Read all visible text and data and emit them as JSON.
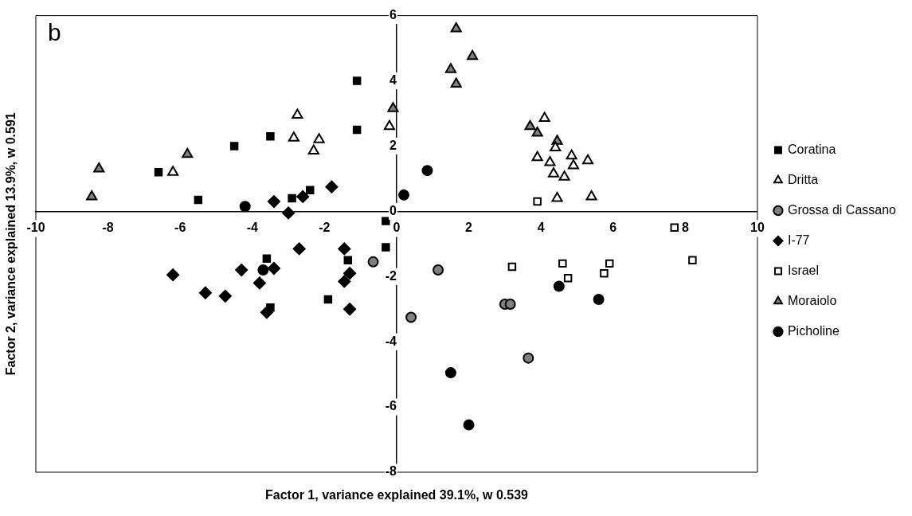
{
  "chart_data": {
    "type": "scatter",
    "xlabel": "Factor 1, variance explained 39.1%, w 0.539",
    "ylabel": "Factor 2, variance explained 13.9%, w 0.591",
    "annotations": [
      "b"
    ],
    "xlim": [
      -10,
      10
    ],
    "xticks": [
      -10,
      -8,
      -6,
      -4,
      -2,
      0,
      2,
      4,
      6,
      8,
      10
    ],
    "ylim": [
      -8,
      6
    ],
    "yticks": [
      -8,
      -6,
      -4,
      -2,
      0,
      2,
      4,
      6
    ],
    "grid": false,
    "legend": "right",
    "series": [
      {
        "name": "Coratina",
        "color": "#000000",
        "marker": "square",
        "x": [
          -1.1,
          -1.1,
          -3.5,
          -4.5,
          -6.6,
          -5.5,
          -2.9,
          -2.4,
          -0.3,
          -0.3,
          -3.6,
          -1.35,
          -1.9,
          -3.5
        ],
        "values": [
          4.0,
          2.5,
          2.3,
          2.0,
          1.2,
          0.35,
          0.4,
          0.65,
          -0.3,
          -1.1,
          -1.45,
          -1.5,
          -2.7,
          -2.95
        ]
      },
      {
        "name": "Dritta",
        "color": "#ffffff",
        "marker": "triangle",
        "x": [
          -6.2,
          -2.75,
          -2.85,
          -2.15,
          -2.3,
          -0.2,
          4.1,
          4.4,
          3.9,
          4.25,
          4.85,
          4.9,
          5.3,
          4.35,
          4.65,
          4.45,
          5.4
        ],
        "values": [
          1.2,
          2.95,
          2.25,
          2.2,
          1.85,
          2.6,
          2.85,
          1.95,
          1.65,
          1.5,
          1.7,
          1.4,
          1.55,
          1.15,
          1.05,
          0.4,
          0.45
        ]
      },
      {
        "name": "Grossa di Cassano",
        "color": "#808080",
        "marker": "circle",
        "x": [
          -0.65,
          1.15,
          0.4,
          3.0,
          3.15,
          3.65
        ],
        "values": [
          -1.55,
          -1.8,
          -3.25,
          -2.85,
          -2.85,
          -4.5
        ]
      },
      {
        "name": "I-77",
        "color": "#000000",
        "marker": "diamond",
        "x": [
          -1.8,
          -2.6,
          -3.4,
          -3.0,
          -2.7,
          -1.45,
          -6.2,
          -4.3,
          -3.4,
          -3.8,
          -1.45,
          -1.3,
          -5.3,
          -4.75,
          -3.6,
          -1.3
        ],
        "values": [
          0.75,
          0.45,
          0.3,
          -0.05,
          -1.15,
          -1.15,
          -1.95,
          -1.8,
          -1.75,
          -2.2,
          -2.15,
          -1.9,
          -2.5,
          -2.6,
          -3.1,
          -3.0
        ]
      },
      {
        "name": "Israel",
        "color": "#ffffff",
        "marker": "square",
        "x": [
          3.9,
          7.7,
          3.2,
          4.6,
          4.75,
          5.9,
          5.75,
          8.2
        ],
        "values": [
          0.3,
          -0.5,
          -1.7,
          -1.6,
          -2.05,
          -1.6,
          -1.9,
          -1.5
        ]
      },
      {
        "name": "Moraiolo",
        "color": "#808080",
        "marker": "triangle",
        "x": [
          -8.25,
          -8.45,
          -5.8,
          -0.1,
          1.65,
          2.1,
          1.5,
          1.65,
          3.7,
          3.9,
          4.45
        ],
        "values": [
          1.3,
          0.45,
          1.75,
          3.15,
          5.6,
          4.75,
          4.35,
          3.9,
          2.6,
          2.4,
          2.15
        ]
      },
      {
        "name": "Picholine",
        "color": "#000000",
        "marker": "circle",
        "x": [
          -4.2,
          -3.7,
          0.85,
          0.2,
          4.5,
          5.6,
          1.5,
          2.0
        ],
        "values": [
          0.15,
          -1.8,
          1.25,
          0.5,
          -2.3,
          -2.7,
          -4.95,
          -6.55
        ]
      }
    ]
  }
}
